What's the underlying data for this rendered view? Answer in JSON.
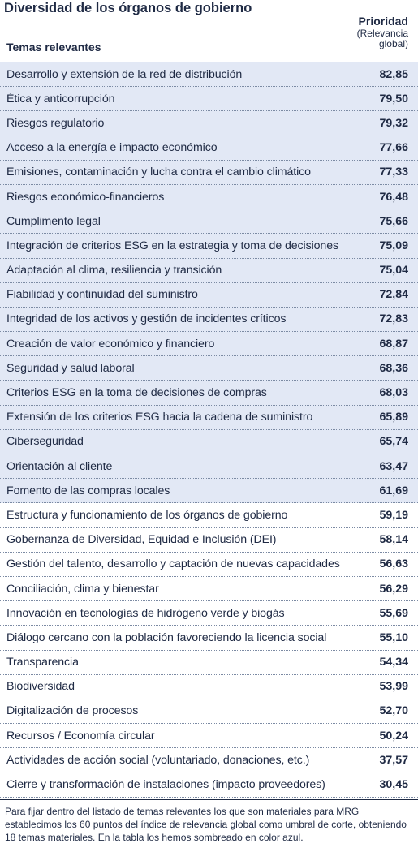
{
  "title": "Diversidad de los órganos de gobierno",
  "table": {
    "col_topic": "Temas relevantes",
    "col_priority": "Prioridad",
    "col_priority_sub1": "(Relevancia",
    "col_priority_sub2": "global)",
    "rows": [
      {
        "topic": "Desarrollo y extensión de la red de distribución",
        "score": "82,85",
        "material": true
      },
      {
        "topic": "Ética y anticorrupción",
        "score": "79,50",
        "material": true
      },
      {
        "topic": "Riesgos regulatorio",
        "score": "79,32",
        "material": true
      },
      {
        "topic": "Acceso a la energía e impacto económico",
        "score": "77,66",
        "material": true
      },
      {
        "topic": "Emisiones, contaminación y lucha contra el cambio climático",
        "score": "77,33",
        "material": true
      },
      {
        "topic": "Riesgos económico-financieros",
        "score": "76,48",
        "material": true
      },
      {
        "topic": "Cumplimento legal",
        "score": "75,66",
        "material": true
      },
      {
        "topic": "Integración de criterios ESG en la estrategia y toma de decisiones",
        "score": "75,09",
        "material": true
      },
      {
        "topic": "Adaptación al clima, resiliencia y transición",
        "score": "75,04",
        "material": true
      },
      {
        "topic": "Fiabilidad y continuidad del suministro",
        "score": "72,84",
        "material": true
      },
      {
        "topic": "Integridad de los activos y gestión de incidentes críticos",
        "score": "72,83",
        "material": true
      },
      {
        "topic": "Creación de valor económico y financiero",
        "score": "68,87",
        "material": true
      },
      {
        "topic": "Seguridad y salud laboral",
        "score": "68,36",
        "material": true
      },
      {
        "topic": "Criterios ESG en la toma de decisiones de compras",
        "score": "68,03",
        "material": true
      },
      {
        "topic": "Extensión de los criterios ESG hacia la cadena de suministro",
        "score": "65,89",
        "material": true
      },
      {
        "topic": "Ciberseguridad",
        "score": "65,74",
        "material": true
      },
      {
        "topic": "Orientación al cliente",
        "score": "63,47",
        "material": true
      },
      {
        "topic": "Fomento de las compras locales",
        "score": "61,69",
        "material": true
      },
      {
        "topic": "Estructura y funcionamiento de los órganos de gobierno",
        "score": "59,19",
        "material": false
      },
      {
        "topic": "Gobernanza de Diversidad, Equidad e Inclusión (DEI)",
        "score": "58,14",
        "material": false
      },
      {
        "topic": "Gestión del talento, desarrollo y captación de nuevas capacidades",
        "score": "56,63",
        "material": false
      },
      {
        "topic": "Conciliación, clima y bienestar",
        "score": "56,29",
        "material": false
      },
      {
        "topic": "Innovación en tecnologías de hidrógeno verde y biogás",
        "score": "55,69",
        "material": false
      },
      {
        "topic": "Diálogo cercano con la población favoreciendo la licencia social",
        "score": "55,10",
        "material": false
      },
      {
        "topic": "Transparencia",
        "score": "54,34",
        "material": false
      },
      {
        "topic": "Biodiversidad",
        "score": "53,99",
        "material": false
      },
      {
        "topic": "Digitalización de procesos",
        "score": "52,70",
        "material": false
      },
      {
        "topic": "Recursos / Economía circular",
        "score": "50,24",
        "material": false
      },
      {
        "topic": "Actividades de acción social (voluntariado, donaciones, etc.)",
        "score": "37,57",
        "material": false
      },
      {
        "topic": "Cierre y transformación de instalaciones (impacto proveedores)",
        "score": "30,45",
        "material": false
      }
    ]
  },
  "colors": {
    "shade": "#e2e8f5",
    "text": "#1f2a44"
  },
  "footnote": "Para fijar dentro del listado de temas relevantes los que son materiales para MRG establecimos los 60 puntos del índice de relevancia global como umbral de corte, obteniendo 18 temas materiales. En la tabla los hemos sombreado en color azul."
}
